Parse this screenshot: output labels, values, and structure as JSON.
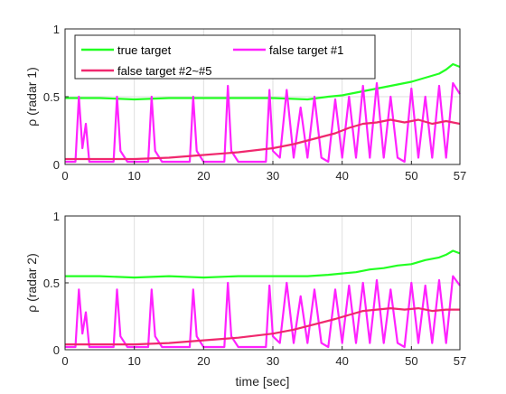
{
  "colors": {
    "true_target": "#22ff22",
    "false_target_1": "#ff22ff",
    "false_target_2_5": "#f0286e",
    "grid": "#dfdfdf",
    "axis": "#262626"
  },
  "chart_data": [
    {
      "type": "line",
      "ylabel": "ρ (radar 1)",
      "xlabel": "",
      "xlim": [
        0,
        57
      ],
      "ylim": [
        0,
        1
      ],
      "xticks": [
        0,
        10,
        20,
        30,
        40,
        50,
        57
      ],
      "yticks": [
        0,
        0.5,
        1
      ],
      "grid": true,
      "legend": {
        "placement": "top-left",
        "entries": [
          "true target",
          "false target #1",
          "false target #2~#5"
        ]
      },
      "series": [
        {
          "name": "true target",
          "x": [
            0,
            5,
            10,
            15,
            20,
            25,
            30,
            35,
            38,
            40,
            42,
            44,
            46,
            48,
            50,
            52,
            54,
            55,
            56,
            57
          ],
          "values": [
            0.49,
            0.49,
            0.48,
            0.49,
            0.49,
            0.49,
            0.49,
            0.48,
            0.5,
            0.51,
            0.53,
            0.55,
            0.57,
            0.59,
            0.61,
            0.64,
            0.67,
            0.7,
            0.74,
            0.72
          ]
        },
        {
          "name": "false target #1",
          "x": [
            0,
            1.5,
            2,
            2.5,
            3,
            3.5,
            5,
            7,
            7.5,
            8,
            9,
            12,
            12.5,
            13,
            14,
            18,
            18.5,
            19,
            20,
            23,
            23.5,
            24,
            25,
            29,
            29.5,
            30,
            31,
            32,
            33,
            34,
            35,
            36,
            37,
            38,
            39,
            40,
            41,
            42,
            43,
            44,
            45,
            46,
            47,
            48,
            49,
            50,
            51,
            52,
            53,
            54,
            55,
            56,
            57
          ],
          "values": [
            0.02,
            0.02,
            0.5,
            0.12,
            0.3,
            0.02,
            0.02,
            0.02,
            0.5,
            0.1,
            0.02,
            0.02,
            0.5,
            0.1,
            0.02,
            0.02,
            0.5,
            0.1,
            0.02,
            0.02,
            0.58,
            0.1,
            0.02,
            0.02,
            0.55,
            0.1,
            0.05,
            0.55,
            0.05,
            0.42,
            0.05,
            0.5,
            0.05,
            0.02,
            0.48,
            0.05,
            0.5,
            0.05,
            0.58,
            0.05,
            0.6,
            0.05,
            0.5,
            0.05,
            0.02,
            0.56,
            0.05,
            0.5,
            0.05,
            0.58,
            0.05,
            0.6,
            0.52
          ]
        },
        {
          "name": "false target #2~#5",
          "x": [
            0,
            5,
            10,
            15,
            20,
            25,
            30,
            33,
            36,
            39,
            41,
            43,
            45,
            47,
            49,
            51,
            53,
            55,
            57
          ],
          "values": [
            0.04,
            0.04,
            0.04,
            0.05,
            0.07,
            0.09,
            0.12,
            0.15,
            0.19,
            0.23,
            0.27,
            0.3,
            0.31,
            0.33,
            0.31,
            0.33,
            0.3,
            0.32,
            0.3
          ]
        }
      ]
    },
    {
      "type": "line",
      "ylabel": "ρ (radar 2)",
      "xlabel": "time [sec]",
      "xlim": [
        0,
        57
      ],
      "ylim": [
        0,
        1
      ],
      "xticks": [
        0,
        10,
        20,
        30,
        40,
        50,
        57
      ],
      "yticks": [
        0,
        0.5,
        1
      ],
      "grid": true,
      "series": [
        {
          "name": "true target",
          "x": [
            0,
            5,
            10,
            15,
            20,
            25,
            30,
            35,
            38,
            40,
            42,
            44,
            46,
            48,
            50,
            52,
            54,
            55,
            56,
            57
          ],
          "values": [
            0.55,
            0.55,
            0.54,
            0.55,
            0.54,
            0.55,
            0.55,
            0.55,
            0.56,
            0.57,
            0.58,
            0.6,
            0.61,
            0.63,
            0.64,
            0.67,
            0.69,
            0.71,
            0.74,
            0.72
          ]
        },
        {
          "name": "false target #1",
          "x": [
            0,
            1.5,
            2,
            2.5,
            3,
            3.5,
            5,
            7,
            7.5,
            8,
            9,
            12,
            12.5,
            13,
            14,
            18,
            18.5,
            19,
            20,
            23,
            23.5,
            24,
            25,
            29,
            29.5,
            30,
            31,
            32,
            33,
            34,
            35,
            36,
            37,
            38,
            39,
            40,
            41,
            42,
            43,
            44,
            45,
            46,
            47,
            48,
            49,
            50,
            51,
            52,
            53,
            54,
            55,
            56,
            57
          ],
          "values": [
            0.02,
            0.02,
            0.45,
            0.12,
            0.28,
            0.02,
            0.02,
            0.02,
            0.45,
            0.1,
            0.02,
            0.02,
            0.45,
            0.1,
            0.02,
            0.02,
            0.45,
            0.1,
            0.02,
            0.02,
            0.5,
            0.1,
            0.02,
            0.02,
            0.48,
            0.1,
            0.05,
            0.5,
            0.05,
            0.4,
            0.05,
            0.45,
            0.05,
            0.02,
            0.45,
            0.05,
            0.48,
            0.05,
            0.5,
            0.05,
            0.52,
            0.05,
            0.45,
            0.05,
            0.02,
            0.5,
            0.05,
            0.48,
            0.05,
            0.52,
            0.05,
            0.55,
            0.48
          ]
        },
        {
          "name": "false target #2~#5",
          "x": [
            0,
            5,
            10,
            15,
            20,
            25,
            30,
            33,
            36,
            39,
            41,
            43,
            45,
            47,
            49,
            51,
            53,
            55,
            57
          ],
          "values": [
            0.04,
            0.04,
            0.04,
            0.05,
            0.07,
            0.09,
            0.12,
            0.15,
            0.19,
            0.23,
            0.26,
            0.29,
            0.3,
            0.31,
            0.3,
            0.31,
            0.29,
            0.3,
            0.3
          ]
        }
      ]
    }
  ]
}
